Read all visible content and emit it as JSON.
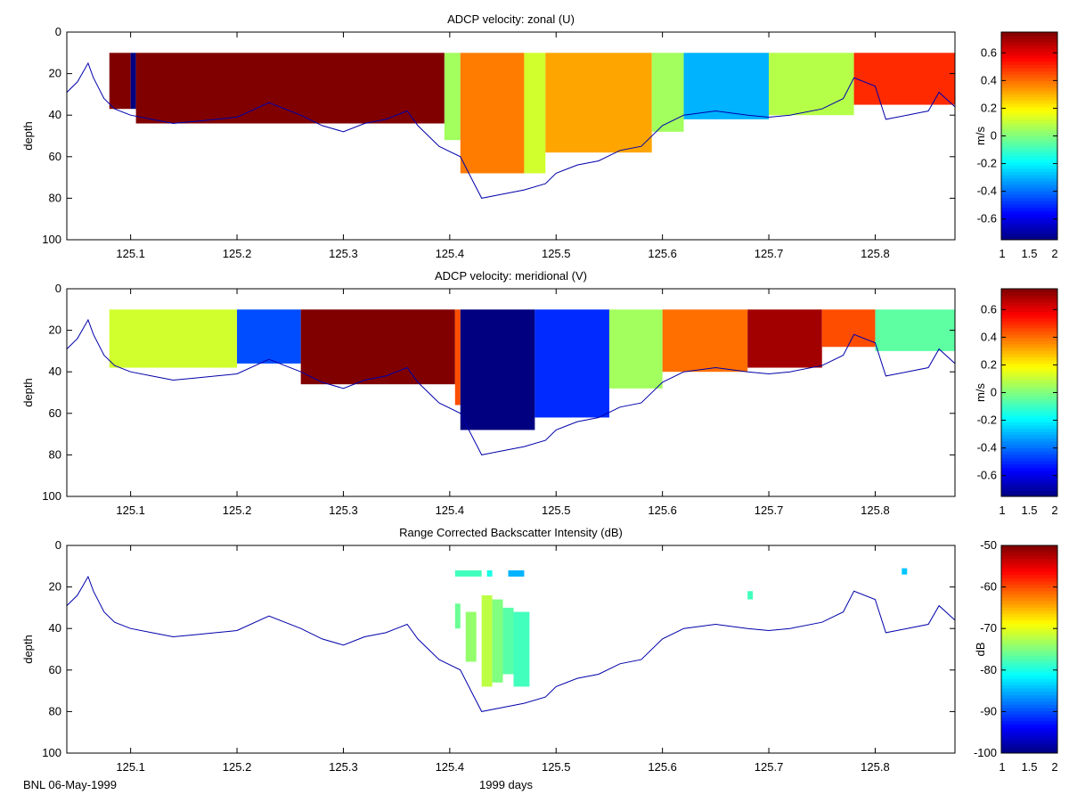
{
  "footer": {
    "left": "BNL 06-May-1999",
    "center": "1999 days"
  },
  "chart_data": [
    {
      "type": "heatmap",
      "title": "ADCP velocity: zonal (U)",
      "ylabel": "depth",
      "xlim": [
        125.04,
        125.875
      ],
      "ylim": [
        0,
        100
      ],
      "y_reversed": true,
      "xticks": [
        "125.1",
        "125.2",
        "125.3",
        "125.4",
        "125.5",
        "125.6",
        "125.7",
        "125.8"
      ],
      "yticks": [
        "0",
        "20",
        "40",
        "60",
        "80",
        "100"
      ],
      "colorbar": {
        "label": "m/s",
        "range": [
          -0.75,
          0.75
        ],
        "ticks": [
          "-0.6",
          "-0.4",
          "-0.2",
          "0",
          "0.2",
          "0.4",
          "0.6"
        ],
        "xticks": [
          "1",
          "1.5",
          "2"
        ],
        "colormap": "jet"
      },
      "bottom_depth_line_color": "#0000aa",
      "bins": {
        "x0": 125.08,
        "dx": 0.0045,
        "y0": 10,
        "dy": 2,
        "segments": [
          {
            "x": [
              125.08,
              125.1
            ],
            "top": 10,
            "bottom": 37,
            "value": 0.75
          },
          {
            "x": [
              125.1,
              125.105
            ],
            "top": 10,
            "bottom": 37,
            "value": -0.75
          },
          {
            "x": [
              125.105,
              125.395
            ],
            "top": 10,
            "bottom": 44,
            "value": 0.75
          },
          {
            "x": [
              125.395,
              125.41
            ],
            "top": 10,
            "bottom": 52,
            "value": 0.05
          },
          {
            "x": [
              125.41,
              125.47
            ],
            "top": 10,
            "bottom": 68,
            "value": 0.38
          },
          {
            "x": [
              125.47,
              125.49
            ],
            "top": 10,
            "bottom": 68,
            "value": 0.12
          },
          {
            "x": [
              125.49,
              125.59
            ],
            "top": 10,
            "bottom": 58,
            "value": 0.32
          },
          {
            "x": [
              125.59,
              125.62
            ],
            "top": 10,
            "bottom": 48,
            "value": 0.05
          },
          {
            "x": [
              125.62,
              125.7
            ],
            "top": 10,
            "bottom": 42,
            "value": -0.3
          },
          {
            "x": [
              125.7,
              125.78
            ],
            "top": 10,
            "bottom": 40,
            "value": 0.08
          },
          {
            "x": [
              125.78,
              125.875
            ],
            "top": 10,
            "bottom": 35,
            "value": 0.5
          }
        ]
      }
    },
    {
      "type": "heatmap",
      "title": "ADCP velocity: meridional (V)",
      "ylabel": "depth",
      "xlim": [
        125.04,
        125.875
      ],
      "ylim": [
        0,
        100
      ],
      "y_reversed": true,
      "xticks": [
        "125.1",
        "125.2",
        "125.3",
        "125.4",
        "125.5",
        "125.6",
        "125.7",
        "125.8"
      ],
      "yticks": [
        "0",
        "20",
        "40",
        "60",
        "80",
        "100"
      ],
      "colorbar": {
        "label": "m/s",
        "range": [
          -0.75,
          0.75
        ],
        "ticks": [
          "-0.6",
          "-0.4",
          "-0.2",
          "0",
          "0.2",
          "0.4",
          "0.6"
        ],
        "xticks": [
          "1",
          "1.5",
          "2"
        ],
        "colormap": "jet"
      },
      "bottom_depth_line_color": "#0000aa",
      "bins": {
        "segments": [
          {
            "x": [
              125.08,
              125.2
            ],
            "top": 10,
            "bottom": 38,
            "value": 0.12
          },
          {
            "x": [
              125.2,
              125.26
            ],
            "top": 10,
            "bottom": 36,
            "value": -0.45
          },
          {
            "x": [
              125.26,
              125.405
            ],
            "top": 10,
            "bottom": 46,
            "value": 0.75
          },
          {
            "x": [
              125.405,
              125.41
            ],
            "top": 10,
            "bottom": 56,
            "value": 0.45
          },
          {
            "x": [
              125.41,
              125.48
            ],
            "top": 10,
            "bottom": 68,
            "value": -0.75
          },
          {
            "x": [
              125.48,
              125.55
            ],
            "top": 10,
            "bottom": 62,
            "value": -0.5
          },
          {
            "x": [
              125.55,
              125.6
            ],
            "top": 10,
            "bottom": 48,
            "value": 0.05
          },
          {
            "x": [
              125.6,
              125.68
            ],
            "top": 10,
            "bottom": 40,
            "value": 0.4
          },
          {
            "x": [
              125.68,
              125.75
            ],
            "top": 10,
            "bottom": 38,
            "value": 0.7
          },
          {
            "x": [
              125.75,
              125.8
            ],
            "top": 10,
            "bottom": 28,
            "value": 0.45
          },
          {
            "x": [
              125.8,
              125.875
            ],
            "top": 10,
            "bottom": 30,
            "value": -0.05
          }
        ]
      }
    },
    {
      "type": "heatmap",
      "title": "Range Corrected Backscatter Intensity (dB)",
      "ylabel": "depth",
      "xlim": [
        125.04,
        125.875
      ],
      "ylim": [
        0,
        100
      ],
      "y_reversed": true,
      "xticks": [
        "125.1",
        "125.2",
        "125.3",
        "125.4",
        "125.5",
        "125.6",
        "125.7",
        "125.8"
      ],
      "yticks": [
        "0",
        "20",
        "40",
        "60",
        "80",
        "100"
      ],
      "colorbar": {
        "label": "dB",
        "range": [
          -100,
          -50
        ],
        "ticks": [
          "-50",
          "-60",
          "-70",
          "-80",
          "-90",
          "-100"
        ],
        "xticks": [
          "1",
          "1.5",
          "2"
        ],
        "colormap": "jet"
      },
      "bottom_depth_line_color": "#0000aa",
      "bins": {
        "segments": [
          {
            "x": [
              125.405,
              125.43
            ],
            "top": 12,
            "bottom": 15,
            "value": -78
          },
          {
            "x": [
              125.435,
              125.44
            ],
            "top": 12,
            "bottom": 15,
            "value": -80
          },
          {
            "x": [
              125.455,
              125.47
            ],
            "top": 12,
            "bottom": 15,
            "value": -85
          },
          {
            "x": [
              125.405,
              125.41
            ],
            "top": 28,
            "bottom": 40,
            "value": -76
          },
          {
            "x": [
              125.415,
              125.425
            ],
            "top": 32,
            "bottom": 56,
            "value": -74
          },
          {
            "x": [
              125.43,
              125.44
            ],
            "top": 24,
            "bottom": 68,
            "value": -72
          },
          {
            "x": [
              125.44,
              125.45
            ],
            "top": 26,
            "bottom": 66,
            "value": -75
          },
          {
            "x": [
              125.45,
              125.46
            ],
            "top": 30,
            "bottom": 62,
            "value": -77
          },
          {
            "x": [
              125.46,
              125.475
            ],
            "top": 32,
            "bottom": 68,
            "value": -78
          },
          {
            "x": [
              125.68,
              125.685
            ],
            "top": 22,
            "bottom": 26,
            "value": -78
          },
          {
            "x": [
              125.825,
              125.83
            ],
            "top": 11,
            "bottom": 14,
            "value": -84
          }
        ]
      }
    }
  ]
}
